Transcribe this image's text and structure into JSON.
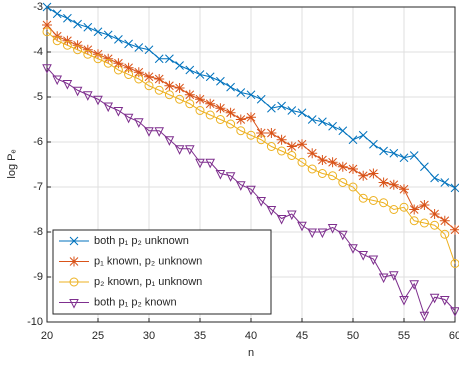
{
  "chart_data": {
    "type": "line",
    "x_label": "n",
    "y_label": "log Pₑ",
    "x": [
      20,
      21,
      22,
      23,
      24,
      25,
      26,
      27,
      28,
      29,
      30,
      31,
      32,
      33,
      34,
      35,
      36,
      37,
      38,
      39,
      40,
      41,
      42,
      43,
      44,
      45,
      46,
      47,
      48,
      49,
      50,
      51,
      52,
      53,
      54,
      55,
      56,
      57,
      58,
      59,
      60
    ],
    "series": [
      {
        "name": "both p₁ p₂ unknown",
        "color": "#0072BD",
        "marker": "x",
        "values": [
          -3.0,
          -3.15,
          -3.25,
          -3.38,
          -3.45,
          -3.55,
          -3.62,
          -3.72,
          -3.82,
          -3.9,
          -3.95,
          -4.15,
          -4.15,
          -4.3,
          -4.4,
          -4.5,
          -4.55,
          -4.65,
          -4.78,
          -4.9,
          -4.95,
          -5.05,
          -5.25,
          -5.2,
          -5.3,
          -5.35,
          -5.5,
          -5.55,
          -5.65,
          -5.75,
          -5.95,
          -5.85,
          -6.05,
          -6.2,
          -6.25,
          -6.35,
          -6.3,
          -6.55,
          -6.8,
          -6.9,
          -7.02
        ]
      },
      {
        "name": "p₁ known, p₂ unknown",
        "color": "#D95319",
        "marker": "star",
        "values": [
          -3.4,
          -3.65,
          -3.75,
          -3.85,
          -3.95,
          -4.05,
          -4.15,
          -4.25,
          -4.35,
          -4.45,
          -4.55,
          -4.6,
          -4.75,
          -4.8,
          -4.95,
          -5.05,
          -5.15,
          -5.25,
          -5.35,
          -5.5,
          -5.45,
          -5.8,
          -5.8,
          -5.95,
          -6.1,
          -6.05,
          -6.25,
          -6.4,
          -6.45,
          -6.55,
          -6.6,
          -6.75,
          -6.7,
          -6.9,
          -6.95,
          -7.05,
          -7.5,
          -7.4,
          -7.6,
          -7.75,
          -7.95
        ]
      },
      {
        "name": "p₂ known, p₁ unknown",
        "color": "#EDB120",
        "marker": "circle",
        "values": [
          -3.55,
          -3.75,
          -3.85,
          -3.95,
          -4.05,
          -4.15,
          -4.25,
          -4.4,
          -4.5,
          -4.6,
          -4.75,
          -4.85,
          -4.95,
          -5.05,
          -5.15,
          -5.3,
          -5.4,
          -5.5,
          -5.6,
          -5.75,
          -5.85,
          -5.95,
          -6.1,
          -6.2,
          -6.3,
          -6.45,
          -6.6,
          -6.7,
          -6.75,
          -6.9,
          -7.0,
          -7.25,
          -7.3,
          -7.35,
          -7.5,
          -7.45,
          -7.75,
          -7.8,
          -7.85,
          -8.05,
          -8.7
        ]
      },
      {
        "name": "both p₁ p₂ known",
        "color": "#7E2F8E",
        "marker": "triangle-down",
        "values": [
          -4.35,
          -4.6,
          -4.7,
          -4.85,
          -4.95,
          -5.05,
          -5.2,
          -5.3,
          -5.45,
          -5.55,
          -5.75,
          -5.75,
          -5.95,
          -6.15,
          -6.15,
          -6.45,
          -6.45,
          -6.7,
          -6.75,
          -6.95,
          -7.05,
          -7.3,
          -7.5,
          -7.7,
          -7.6,
          -7.85,
          -8.0,
          -8.0,
          -7.9,
          -8.05,
          -8.35,
          -8.5,
          -8.6,
          -9.0,
          -8.95,
          -9.5,
          -9.15,
          -9.85,
          -9.45,
          -9.5,
          -9.75
        ]
      }
    ],
    "xlim": [
      20,
      60
    ],
    "xticks": [
      20,
      25,
      30,
      35,
      40,
      45,
      50,
      55,
      60
    ],
    "ylim": [
      -10,
      -3
    ],
    "yticks": [
      -10,
      -9,
      -8,
      -7,
      -6,
      -5,
      -4,
      -3
    ],
    "grid": true,
    "legend": "lower left"
  }
}
